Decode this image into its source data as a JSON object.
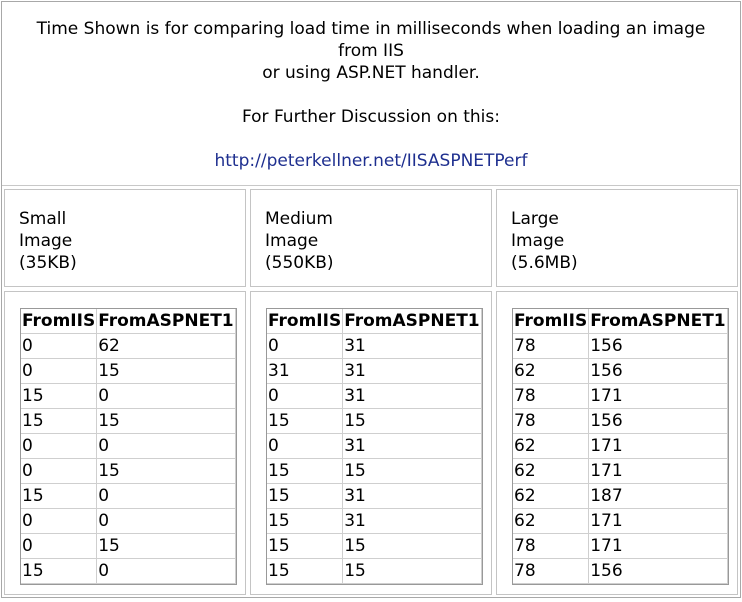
{
  "header": {
    "line1": "Time Shown is for comparing load time in milliseconds when loading an image",
    "line2": "from IIS",
    "line3": "or using ASP.NET handler.",
    "discussion": "For Further Discussion on this:",
    "link": "http://peterkellner.net/IISASPNETPerf"
  },
  "columns": [
    {
      "label": [
        "Small",
        "Image",
        "(35KB)"
      ],
      "headers": [
        "FromIIS",
        "FromASPNET1"
      ],
      "rows": [
        [
          "0",
          "62"
        ],
        [
          "0",
          "15"
        ],
        [
          "15",
          "0"
        ],
        [
          "15",
          "15"
        ],
        [
          "0",
          "0"
        ],
        [
          "0",
          "15"
        ],
        [
          "15",
          "0"
        ],
        [
          "0",
          "0"
        ],
        [
          "0",
          "15"
        ],
        [
          "15",
          "0"
        ]
      ]
    },
    {
      "label": [
        "Medium",
        "Image",
        "(550KB)"
      ],
      "headers": [
        "FromIIS",
        "FromASPNET1"
      ],
      "rows": [
        [
          "0",
          "31"
        ],
        [
          "31",
          "31"
        ],
        [
          "0",
          "31"
        ],
        [
          "15",
          "15"
        ],
        [
          "0",
          "31"
        ],
        [
          "15",
          "15"
        ],
        [
          "15",
          "31"
        ],
        [
          "15",
          "31"
        ],
        [
          "15",
          "15"
        ],
        [
          "15",
          "15"
        ]
      ]
    },
    {
      "label": [
        "Large",
        "Image",
        "(5.6MB)"
      ],
      "headers": [
        "FromIIS",
        "FromASPNET1"
      ],
      "rows": [
        [
          "78",
          "156"
        ],
        [
          "62",
          "156"
        ],
        [
          "78",
          "171"
        ],
        [
          "78",
          "156"
        ],
        [
          "62",
          "171"
        ],
        [
          "62",
          "171"
        ],
        [
          "62",
          "187"
        ],
        [
          "62",
          "171"
        ],
        [
          "78",
          "171"
        ],
        [
          "78",
          "156"
        ]
      ]
    }
  ]
}
